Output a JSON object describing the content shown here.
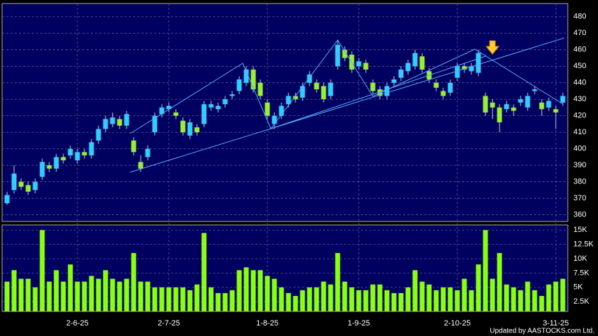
{
  "chart_data": {
    "type": "candlestick",
    "footer": "Updated by AASTOCKS.com Ltd.",
    "categories": [
      null,
      null,
      null,
      null,
      null,
      null,
      null,
      null,
      null,
      null,
      "2-6-25",
      null,
      null,
      null,
      null,
      null,
      null,
      null,
      null,
      null,
      null,
      null,
      null,
      "2-7-25",
      null,
      null,
      null,
      null,
      null,
      null,
      null,
      null,
      null,
      null,
      null,
      null,
      null,
      "1-8-25",
      null,
      null,
      null,
      null,
      null,
      null,
      null,
      null,
      null,
      null,
      null,
      null,
      "1-9-25",
      null,
      null,
      null,
      null,
      null,
      null,
      null,
      null,
      null,
      null,
      null,
      null,
      null,
      "2-10-25",
      null,
      null,
      null,
      null,
      null,
      null,
      null,
      null,
      null,
      null,
      null,
      null,
      null,
      "3-11-25",
      null
    ],
    "open": [
      367,
      375,
      380,
      378,
      375,
      383,
      390,
      388,
      395,
      396,
      393,
      398,
      396,
      405,
      412,
      415,
      418,
      414,
      405,
      392,
      395,
      410,
      421,
      424,
      422,
      417,
      408,
      413,
      415,
      425,
      424,
      427,
      432,
      435,
      440,
      448,
      440,
      428,
      415,
      420,
      427,
      432,
      431,
      440,
      440,
      438,
      432,
      450,
      460,
      457,
      450,
      452,
      440,
      436,
      432,
      440,
      443,
      447,
      450,
      456,
      447,
      440,
      435,
      434,
      443,
      450,
      447,
      446,
      432,
      428,
      425,
      424,
      425,
      428,
      425,
      435,
      428,
      425,
      424,
      428
    ],
    "high": [
      374,
      390,
      382,
      380,
      382,
      394,
      392,
      397,
      397,
      402,
      400,
      400,
      406,
      414,
      420,
      422,
      420,
      423,
      407,
      396,
      402,
      422,
      427,
      428,
      424,
      419,
      418,
      415,
      429,
      429,
      428,
      432,
      435,
      444,
      450,
      450,
      442,
      430,
      422,
      428,
      434,
      434,
      440,
      447,
      442,
      440,
      442,
      466,
      462,
      459,
      455,
      454,
      442,
      438,
      440,
      444,
      450,
      454,
      460,
      458,
      449,
      442,
      437,
      442,
      452,
      452,
      452,
      460,
      434,
      430,
      427,
      429,
      427,
      432,
      434,
      438,
      430,
      431,
      426,
      434
    ],
    "low": [
      366,
      373,
      375,
      372,
      373,
      381,
      386,
      386,
      391,
      394,
      391,
      394,
      394,
      403,
      410,
      413,
      412,
      412,
      396,
      386,
      393,
      408,
      419,
      422,
      418,
      408,
      406,
      408,
      413,
      423,
      422,
      425,
      430,
      433,
      438,
      434,
      430,
      418,
      412,
      418,
      425,
      428,
      429,
      438,
      434,
      428,
      430,
      448,
      453,
      446,
      448,
      446,
      433,
      430,
      430,
      438,
      441,
      445,
      448,
      446,
      440,
      435,
      430,
      432,
      441,
      446,
      445,
      444,
      420,
      418,
      410,
      422,
      420,
      426,
      423,
      433,
      420,
      423,
      412,
      426
    ],
    "close": [
      372,
      385,
      377,
      374,
      380,
      392,
      388,
      395,
      393,
      400,
      398,
      396,
      404,
      412,
      418,
      419,
      414,
      421,
      398,
      388,
      400,
      420,
      425,
      426,
      420,
      410,
      416,
      410,
      427,
      427,
      426,
      430,
      433,
      442,
      448,
      436,
      432,
      420,
      420,
      426,
      432,
      430,
      438,
      445,
      436,
      430,
      440,
      463,
      455,
      448,
      453,
      448,
      435,
      432,
      438,
      442,
      448,
      452,
      458,
      448,
      442,
      437,
      432,
      440,
      450,
      448,
      450,
      458,
      422,
      425,
      416,
      427,
      423,
      430,
      432,
      436,
      424,
      429,
      422,
      432
    ],
    "up_color": "#33ccff",
    "down_color": "#99ee33",
    "ylim": [
      356,
      488
    ],
    "yticks": [
      360,
      370,
      380,
      390,
      400,
      410,
      420,
      430,
      440,
      450,
      460,
      470,
      480
    ],
    "grid": true,
    "volume": {
      "color": "#88ff11",
      "ylim": [
        800,
        15900
      ],
      "values": [
        6000,
        8000,
        6500,
        6500,
        5000,
        15000,
        6000,
        8000,
        6000,
        9000,
        6000,
        6000,
        7000,
        6500,
        8000,
        6500,
        6000,
        6500,
        11000,
        6000,
        6000,
        5000,
        5000,
        5000,
        5000,
        5000,
        4500,
        5500,
        14500,
        5000,
        4000,
        4000,
        4500,
        8000,
        8500,
        8000,
        8000,
        7000,
        6500,
        5000,
        4000,
        3500,
        4500,
        5000,
        5000,
        6000,
        5500,
        11000,
        6000,
        5000,
        4500,
        4500,
        5500,
        5500,
        4500,
        4000,
        4000,
        5000,
        8000,
        6000,
        5500,
        4500,
        5000,
        5000,
        4500,
        6500,
        4500,
        9000,
        15000,
        6500,
        11000,
        5500,
        5000,
        4500,
        6000,
        4500,
        3500,
        5500,
        6000,
        6500
      ],
      "yticks": [
        {
          "value": 2500,
          "label": "2.5K"
        },
        {
          "value": 5000,
          "label": "5K"
        },
        {
          "value": 7500,
          "label": "7.5K"
        },
        {
          "value": 10000,
          "label": "10K"
        },
        {
          "value": 12500,
          "label": "12.5K"
        },
        {
          "value": 15000,
          "label": "15K"
        }
      ]
    }
  }
}
